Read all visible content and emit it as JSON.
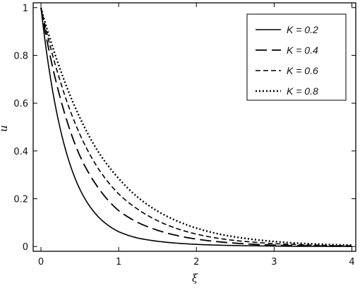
{
  "chart_data": {
    "type": "line",
    "title": "",
    "xlabel": "ξ",
    "ylabel": "u",
    "xlim": [
      -0.1,
      4.05
    ],
    "ylim": [
      -0.02,
      1.02
    ],
    "x_ticks": [
      0,
      1,
      2,
      3,
      4
    ],
    "y_ticks": [
      0,
      0.2,
      0.4,
      0.6,
      0.8,
      1
    ],
    "x_tick_labels": [
      "0",
      "1",
      "2",
      "3",
      "4"
    ],
    "y_tick_labels": [
      "0",
      "0.2",
      "0.4",
      "0.6",
      "0.8",
      "1"
    ],
    "grid": false,
    "legend_position": "top-right",
    "x": [
      0,
      0.25,
      0.5,
      0.75,
      1,
      1.25,
      1.5,
      1.75,
      2,
      2.25,
      2.5,
      2.75,
      3,
      3.25,
      3.5,
      3.75,
      4
    ],
    "series": [
      {
        "name": "K = 0.2",
        "style": "solid",
        "values": [
          1,
          0.49,
          0.24,
          0.12,
          0.062,
          0.035,
          0.022,
          0.014,
          0.009,
          0.006,
          0.004,
          0.003,
          0.002,
          0.001,
          0.001,
          0.0005,
          0.0003
        ]
      },
      {
        "name": "K = 0.4",
        "style": "long-dash",
        "values": [
          1,
          0.62,
          0.38,
          0.24,
          0.15,
          0.1,
          0.068,
          0.046,
          0.031,
          0.021,
          0.014,
          0.009,
          0.006,
          0.004,
          0.003,
          0.002,
          0.001
        ]
      },
      {
        "name": "K = 0.6",
        "style": "dash",
        "values": [
          1,
          0.69,
          0.47,
          0.32,
          0.22,
          0.155,
          0.108,
          0.075,
          0.052,
          0.036,
          0.025,
          0.018,
          0.012,
          0.009,
          0.006,
          0.004,
          0.003
        ]
      },
      {
        "name": "K = 0.8",
        "style": "dotted",
        "values": [
          1,
          0.74,
          0.54,
          0.39,
          0.285,
          0.205,
          0.148,
          0.107,
          0.077,
          0.055,
          0.04,
          0.029,
          0.021,
          0.015,
          0.011,
          0.008,
          0.006
        ]
      }
    ]
  }
}
